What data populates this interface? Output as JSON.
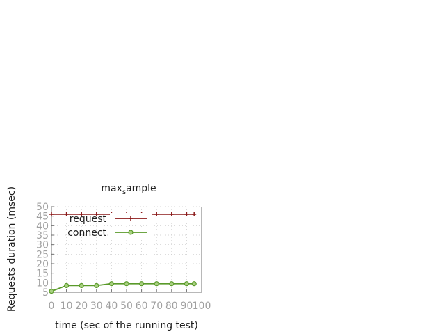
{
  "chart_data": {
    "type": "line",
    "title": "max_sample",
    "title_main": "max",
    "title_sub": "s",
    "title_tail": "ample",
    "xlabel": "time (sec of the running test)",
    "ylabel": "Requests duration (msec)",
    "xlim": [
      0,
      100
    ],
    "ylim": [
      5,
      50
    ],
    "x_ticks": [
      "0",
      "10",
      "20",
      "30",
      "40",
      "50",
      "60",
      "70",
      "80",
      "90",
      "100"
    ],
    "y_ticks": [
      "5",
      "10",
      "15",
      "20",
      "25",
      "30",
      "35",
      "40",
      "45",
      "50"
    ],
    "grid": true,
    "legend_position": "top-left",
    "series": [
      {
        "name": "request",
        "color": "#8b1a1a",
        "marker": "plus",
        "x": [
          0,
          10,
          20,
          30,
          40,
          50,
          60,
          70,
          80,
          90,
          95
        ],
        "values": [
          46,
          46,
          46,
          46,
          46,
          46,
          46,
          46,
          46,
          46,
          46
        ]
      },
      {
        "name": "connect",
        "color": "#5a9a2a",
        "marker": "circle",
        "x": [
          0,
          10,
          20,
          30,
          40,
          50,
          60,
          70,
          80,
          90,
          95
        ],
        "values": [
          5.5,
          8.5,
          8.5,
          8.5,
          9.5,
          9.5,
          9.5,
          9.5,
          9.5,
          9.5,
          9.5
        ]
      }
    ]
  }
}
